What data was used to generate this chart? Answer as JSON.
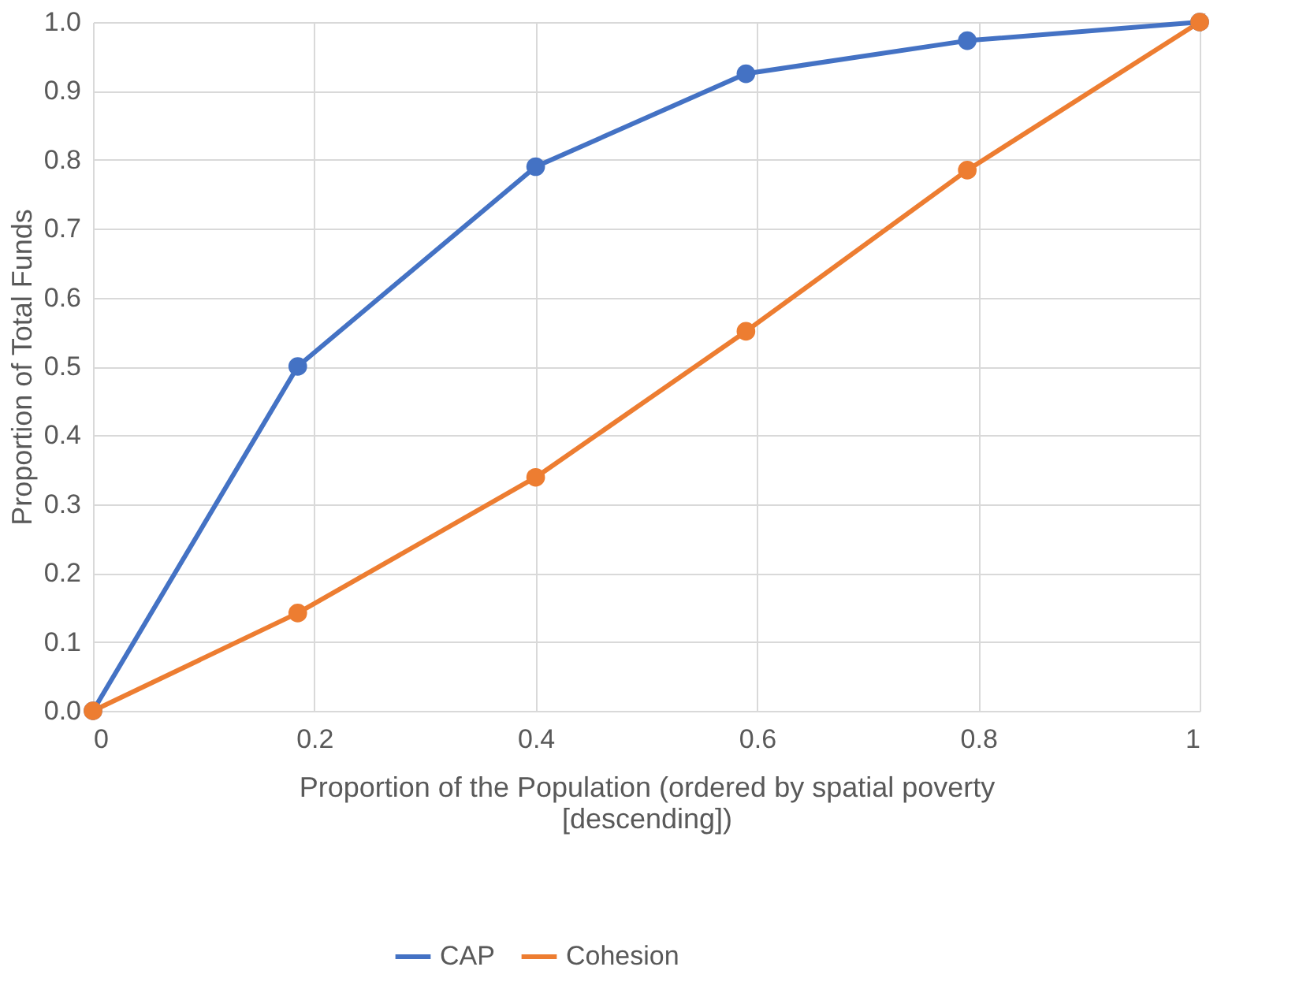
{
  "chart_data": {
    "type": "line",
    "xlabel": "Proportion of the Population (ordered by spatial poverty [descending])",
    "ylabel": "Proportion of Total Funds",
    "series": [
      {
        "name": "CAP",
        "color": "#4472c4",
        "x": [
          0,
          0.185,
          0.4,
          0.59,
          0.79,
          1
        ],
        "values": [
          0,
          0.5,
          0.79,
          0.925,
          0.973,
          1
        ]
      },
      {
        "name": "Cohesion",
        "color": "#ed7d31",
        "x": [
          0,
          0.185,
          0.4,
          0.59,
          0.79,
          1
        ],
        "values": [
          0,
          0.142,
          0.339,
          0.551,
          0.785,
          1
        ]
      }
    ],
    "xlim": [
      0,
      1
    ],
    "xticks": [
      0,
      0.2,
      0.4,
      0.6,
      0.8,
      1
    ],
    "ylim": [
      0,
      1
    ],
    "yticks": [
      {
        "value": 0,
        "label": "0.0"
      },
      0.1,
      0.2,
      0.3,
      0.4,
      0.5,
      0.6,
      0.7,
      0.8,
      0.9,
      {
        "value": 1,
        "label": "1.0"
      }
    ],
    "grid": true,
    "legend": "bottom",
    "marker": "circle",
    "line_style": "solid"
  }
}
